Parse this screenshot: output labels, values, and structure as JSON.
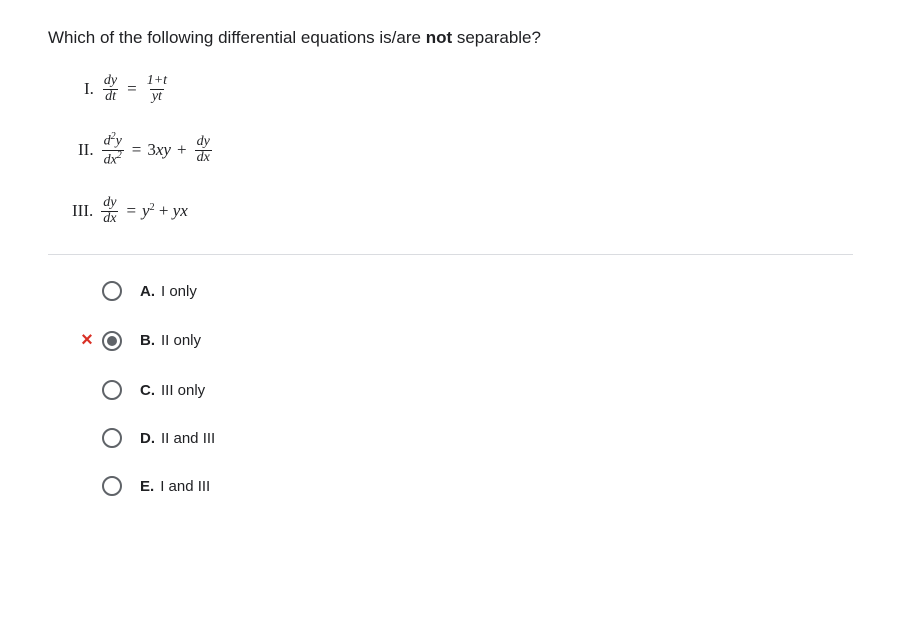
{
  "question": {
    "stem_pre": "Which of the following differential equations is/are ",
    "stem_bold": "not",
    "stem_post": " separable?",
    "equations": {
      "i": {
        "numeral": "I.",
        "lhs_num": "dy",
        "lhs_den": "dt",
        "eq": "=",
        "rhs_num": "1+t",
        "rhs_den": "yt"
      },
      "ii": {
        "numeral": "II.",
        "lhs_num_html": "d<sup>2</sup>y",
        "lhs_den_html": "dx<sup>2</sup>",
        "eq": "=",
        "mid": "3xy",
        "plus": "+",
        "rhs_num": "dy",
        "rhs_den": "dx"
      },
      "iii": {
        "numeral": "III.",
        "lhs_num": "dy",
        "lhs_den": "dx",
        "eq": "=",
        "rhs_html": "y<sup>2</sup> + yx"
      }
    }
  },
  "options": [
    {
      "letter": "A.",
      "text": "I only",
      "selected": false,
      "mark": ""
    },
    {
      "letter": "B.",
      "text": "II only",
      "selected": true,
      "mark": "×"
    },
    {
      "letter": "C.",
      "text": "III only",
      "selected": false,
      "mark": ""
    },
    {
      "letter": "D.",
      "text": "II and III",
      "selected": false,
      "mark": ""
    },
    {
      "letter": "E.",
      "text": "I and III",
      "selected": false,
      "mark": ""
    }
  ],
  "colors": {
    "text": "#202124",
    "border": "#dadce0",
    "radio": "#5f6368",
    "wrong": "#d93025",
    "background": "#ffffff"
  }
}
